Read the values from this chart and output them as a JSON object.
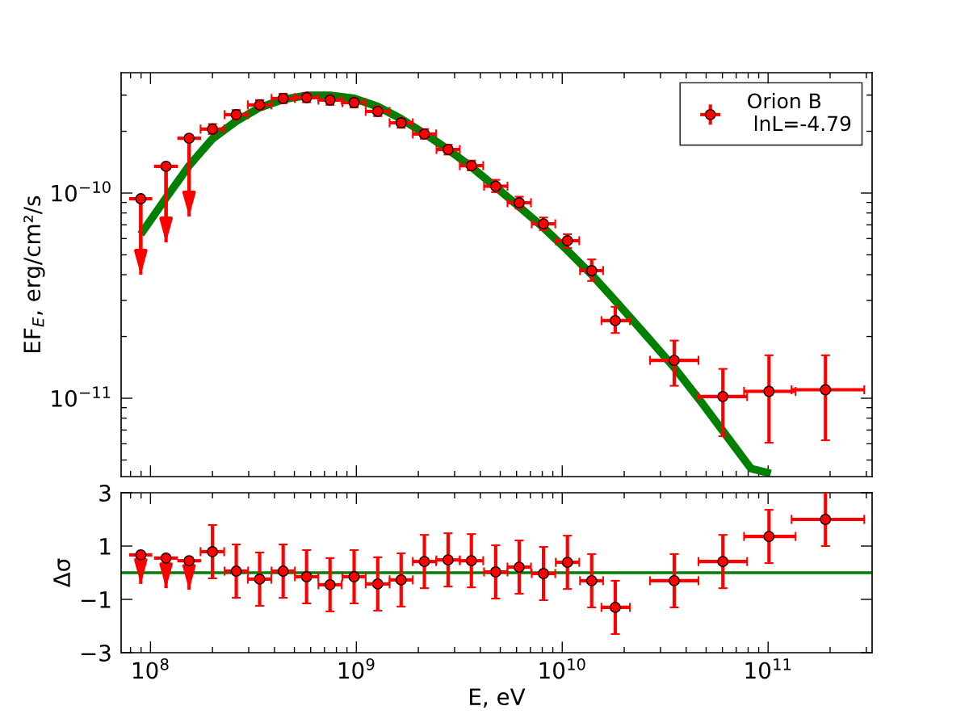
{
  "chart_data": [
    {
      "type": "scatter",
      "ylabel": "EF$_{E}$, erg/cm²/s",
      "log": "xy",
      "legend": "top right",
      "tick_labels": "y",
      "xlim": [
        72000000.0,
        320000000000.0
      ],
      "ylim": [
        4.15e-12,
        3.86e-10
      ],
      "xticks": [
        {
          "value": 100000000.0,
          "label": null
        },
        {
          "value": 1000000000.0,
          "label": null
        },
        {
          "value": 10000000000.0,
          "label": null
        },
        {
          "value": 100000000000.0,
          "label": null
        }
      ],
      "yticks": [
        {
          "value": 1e-11,
          "label": "10$^{−11}$"
        },
        {
          "value": 1e-10,
          "label": "10$^{−10}$"
        }
      ],
      "series": [
        {
          "name": "Orion B\n lnL=-4.79",
          "color": "#ff0000",
          "marker": "circle",
          "x": [
            89700000.0,
            119000000.0,
            154000000.0,
            200000000.0,
            261000000.0,
            339000000.0,
            441000000.0,
            573000000.0,
            745000000.0,
            975000000.0,
            1270000000.0,
            1650000000.0,
            2140000000.0,
            2790000000.0,
            3620000000.0,
            4750000000.0,
            6180000000.0,
            8110000000.0,
            10600000000.0,
            13900000000.0,
            18100000000.0,
            35000000000.0,
            60300000000.0,
            101000000000.0,
            190000000000.0
          ],
          "values": [
            9.38e-11,
            1.35e-10,
            1.85e-10,
            2.05e-10,
            2.41e-10,
            2.69e-10,
            2.89e-10,
            2.92e-10,
            2.84e-10,
            2.76e-10,
            2.5e-10,
            2.2e-10,
            1.94e-10,
            1.63e-10,
            1.36e-10,
            1.08e-10,
            8.97e-11,
            7.08e-11,
            5.86e-11,
            4.19e-11,
            2.39e-11,
            1.53e-11,
            1.02e-11,
            1.08e-11,
            1.1e-11
          ],
          "errors": [
            [
              4e-11,
              9.38e-11
            ],
            [
              5.75e-11,
              1.35e-10
            ],
            [
              7.69e-11,
              1.85e-10
            ],
            [
              1.94e-10,
              2.17e-10
            ],
            [
              2.28e-10,
              2.54e-10
            ],
            [
              2.55e-10,
              2.84e-10
            ],
            [
              2.74e-10,
              3.05e-10
            ],
            [
              2.77e-10,
              3.08e-10
            ],
            [
              2.69e-10,
              3e-10
            ],
            [
              2.61e-10,
              2.91e-10
            ],
            [
              2.37e-10,
              2.64e-10
            ],
            [
              2.08e-10,
              2.32e-10
            ],
            [
              1.84e-10,
              2.05e-10
            ],
            [
              1.54e-10,
              1.72e-10
            ],
            [
              1.29e-10,
              1.44e-10
            ],
            [
              1.01e-10,
              1.16e-10
            ],
            [
              8.4e-11,
              9.6e-11
            ],
            [
              6.6e-11,
              7.6e-11
            ],
            [
              5.4e-11,
              6.3e-11
            ],
            [
              3.73e-11,
              4.75e-11
            ],
            [
              2.08e-11,
              2.79e-11
            ],
            [
              1.15e-11,
              1.91e-11
            ],
            [
              6.53e-12,
              1.39e-11
            ],
            [
              6.07e-12,
              1.62e-11
            ],
            [
              6.24e-12,
              1.62e-11
            ]
          ],
          "xerrors": [
            [
              78700000.0,
              102000000.0
            ],
            [
              104000000.0,
              136000000.0
            ],
            [
              135000000.0,
              176000000.0
            ],
            [
              175000000.0,
              228000000.0
            ],
            [
              229000000.0,
              298000000.0
            ],
            [
              297000000.0,
              386000000.0
            ],
            [
              387000000.0,
              503000000.0
            ],
            [
              503000000.0,
              653000000.0
            ],
            [
              654000000.0,
              849000000.0
            ],
            [
              855000000.0,
              1110000000.0
            ],
            [
              1110000000.0,
              1450000000.0
            ],
            [
              1450000000.0,
              1880000000.0
            ],
            [
              1880000000.0,
              2440000000.0
            ],
            [
              2450000000.0,
              3180000000.0
            ],
            [
              3180000000.0,
              4130000000.0
            ],
            [
              4170000000.0,
              5420000000.0
            ],
            [
              5420000000.0,
              7050000000.0
            ],
            [
              7110000000.0,
              9250000000.0
            ],
            [
              9300000000.0,
              12100000000.0
            ],
            [
              12200000000.0,
              15800000000.0
            ],
            [
              15500000000.0,
              21300000000.0
            ],
            [
              26700000000.0,
              45900000000.0
            ],
            [
              45900000000.0,
              79100000000.0
            ],
            [
              76400000000.0,
              136000000000.0
            ],
            [
              130000000000.0,
              293000000000.0
            ]
          ]
        },
        {
          "type": "line",
          "color": "#008000",
          "x": [
            89700000.0,
            119000000.0,
            154000000.0,
            200000000.0,
            261000000.0,
            339000000.0,
            441000000.0,
            573000000.0,
            745000000.0,
            975000000.0,
            1270000000.0,
            1650000000.0,
            2140000000.0,
            2790000000.0,
            3620000000.0,
            4750000000.0,
            6180000000.0,
            8110000000.0,
            10600000000.0,
            13900000000.0,
            18100000000.0,
            25500000000.0,
            35000000000.0,
            48100000000.0,
            63000000000.0,
            82600000000.0,
            103000000000.0
          ],
          "values": [
            6.3e-11,
            9.47e-11,
            1.36e-10,
            1.84e-10,
            2.24e-10,
            2.61e-10,
            2.86e-10,
            2.99e-10,
            2.99e-10,
            2.89e-10,
            2.64e-10,
            2.3e-10,
            1.95e-10,
            1.63e-10,
            1.34e-10,
            1.07e-10,
            8.57e-11,
            6.78e-11,
            5.25e-11,
            4e-11,
            2.99e-11,
            2.03e-11,
            1.41e-11,
            9.38e-12,
            6.53e-12,
            4.54e-12,
            4.3e-12
          ]
        }
      ]
    },
    {
      "type": "scatter",
      "xlabel": "E, eV",
      "ylabel": "Δσ",
      "log": "x",
      "xlim": [
        72000000.0,
        320000000000.0
      ],
      "ylim": [
        -3,
        3
      ],
      "xticks": [
        {
          "value": 100000000.0,
          "label": "10$^{8}$"
        },
        {
          "value": 1000000000.0,
          "label": "10$^{9}$"
        },
        {
          "value": 10000000000.0,
          "label": "10$^{10}$"
        },
        {
          "value": 100000000000.0,
          "label": "10$^{11}$"
        }
      ],
      "yticks": [
        {
          "value": 3,
          "label": "3"
        },
        {
          "value": 1,
          "label": "1"
        },
        {
          "value": -1,
          "label": "−1"
        },
        {
          "value": -3,
          "label": "−3"
        }
      ],
      "ref_lines": [
        {
          "axis": "y",
          "value": 0,
          "color": "#008000"
        }
      ],
      "series": [
        {
          "color": "#ff0000",
          "marker": "circle",
          "x": [
            89700000.0,
            119000000.0,
            154000000.0,
            200000000.0,
            261000000.0,
            339000000.0,
            441000000.0,
            573000000.0,
            745000000.0,
            975000000.0,
            1270000000.0,
            1650000000.0,
            2140000000.0,
            2790000000.0,
            3620000000.0,
            4750000000.0,
            6180000000.0,
            8110000000.0,
            10600000000.0,
            13900000000.0,
            18100000000.0,
            35000000000.0,
            60300000000.0,
            101000000000.0,
            190000000000.0
          ],
          "values": [
            0.67,
            0.55,
            0.45,
            0.79,
            0.06,
            -0.24,
            0.06,
            -0.15,
            -0.45,
            -0.15,
            -0.42,
            -0.27,
            0.42,
            0.48,
            0.45,
            0.03,
            0.21,
            -0.03,
            0.39,
            -0.3,
            -1.3,
            -0.3,
            0.42,
            1.36,
            2.0
          ],
          "errors": [
            [
              -0.42,
              0.67
            ],
            [
              -0.58,
              0.55
            ],
            [
              -0.64,
              0.45
            ],
            1,
            1,
            1,
            1,
            1,
            1,
            1,
            1,
            1,
            1,
            1,
            1,
            1,
            1,
            1,
            1,
            1,
            1,
            1,
            1,
            1,
            1
          ],
          "xerrors": [
            [
              78700000.0,
              102000000.0
            ],
            [
              104000000.0,
              136000000.0
            ],
            [
              135000000.0,
              176000000.0
            ],
            [
              175000000.0,
              228000000.0
            ],
            [
              229000000.0,
              298000000.0
            ],
            [
              297000000.0,
              386000000.0
            ],
            [
              387000000.0,
              503000000.0
            ],
            [
              503000000.0,
              653000000.0
            ],
            [
              654000000.0,
              849000000.0
            ],
            [
              855000000.0,
              1110000000.0
            ],
            [
              1110000000.0,
              1450000000.0
            ],
            [
              1450000000.0,
              1880000000.0
            ],
            [
              1880000000.0,
              2440000000.0
            ],
            [
              2450000000.0,
              3180000000.0
            ],
            [
              3180000000.0,
              4130000000.0
            ],
            [
              4170000000.0,
              5420000000.0
            ],
            [
              5420000000.0,
              7050000000.0
            ],
            [
              7110000000.0,
              9250000000.0
            ],
            [
              9300000000.0,
              12100000000.0
            ],
            [
              12200000000.0,
              15800000000.0
            ],
            [
              15500000000.0,
              21300000000.0
            ],
            [
              26700000000.0,
              45900000000.0
            ],
            [
              45900000000.0,
              79100000000.0
            ],
            [
              76400000000.0,
              136000000000.0
            ],
            [
              130000000000.0,
              293000000000.0
            ]
          ]
        }
      ]
    }
  ]
}
